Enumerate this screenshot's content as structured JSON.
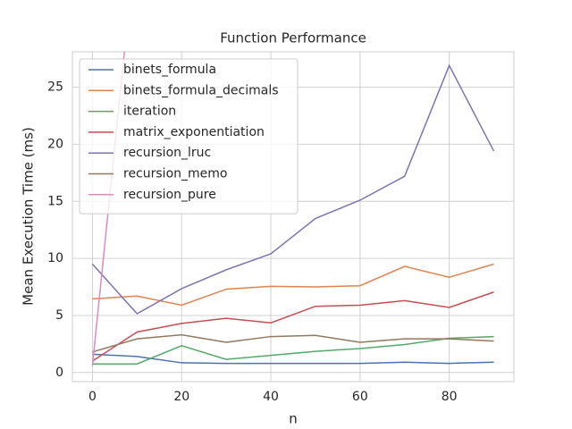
{
  "chart_data": {
    "type": "line",
    "title": "Function Performance",
    "x_label": "n",
    "y_label": "Mean Execution Time (ms)",
    "x": [
      0,
      10,
      20,
      30,
      40,
      50,
      60,
      70,
      80,
      90
    ],
    "series": [
      {
        "name": "binets_formula",
        "color": "#4c72b0",
        "values": [
          1.6,
          1.4,
          0.85,
          0.8,
          0.8,
          0.8,
          0.8,
          0.9,
          0.8,
          0.9
        ]
      },
      {
        "name": "binets_formula_decimals",
        "color": "#dd8452",
        "values": [
          6.45,
          6.7,
          5.9,
          7.3,
          7.55,
          7.5,
          7.6,
          9.3,
          8.35,
          9.5
        ]
      },
      {
        "name": "iteration",
        "color": "#55a868",
        "values": [
          0.75,
          0.75,
          2.35,
          1.15,
          1.5,
          1.85,
          2.1,
          2.45,
          3.0,
          3.15
        ]
      },
      {
        "name": "matrix_exponentiation",
        "color": "#c44e52",
        "values": [
          1.0,
          3.55,
          4.3,
          4.75,
          4.35,
          5.8,
          5.9,
          6.3,
          5.7,
          7.05
        ]
      },
      {
        "name": "recursion_lruc",
        "color": "#8172b3",
        "values": [
          9.5,
          5.15,
          7.35,
          9.0,
          10.4,
          13.5,
          15.1,
          17.2,
          26.9,
          19.4
        ]
      },
      {
        "name": "recursion_memo",
        "color": "#937860",
        "values": [
          1.8,
          2.95,
          3.3,
          2.65,
          3.15,
          3.25,
          2.65,
          2.95,
          2.95,
          2.75
        ]
      },
      {
        "name": "recursion_pure",
        "color": "#da8bc3",
        "values": [
          0.6,
          39,
          null,
          null,
          null,
          null,
          null,
          null,
          null,
          null
        ]
      }
    ],
    "xlim": [
      -4.5,
      94.5
    ],
    "ylim": [
      -0.8,
      28.1
    ],
    "xticks": [
      0,
      20,
      40,
      60,
      80
    ],
    "yticks": [
      0,
      5,
      10,
      15,
      20,
      25
    ],
    "grid": true,
    "legend": "upper left"
  }
}
